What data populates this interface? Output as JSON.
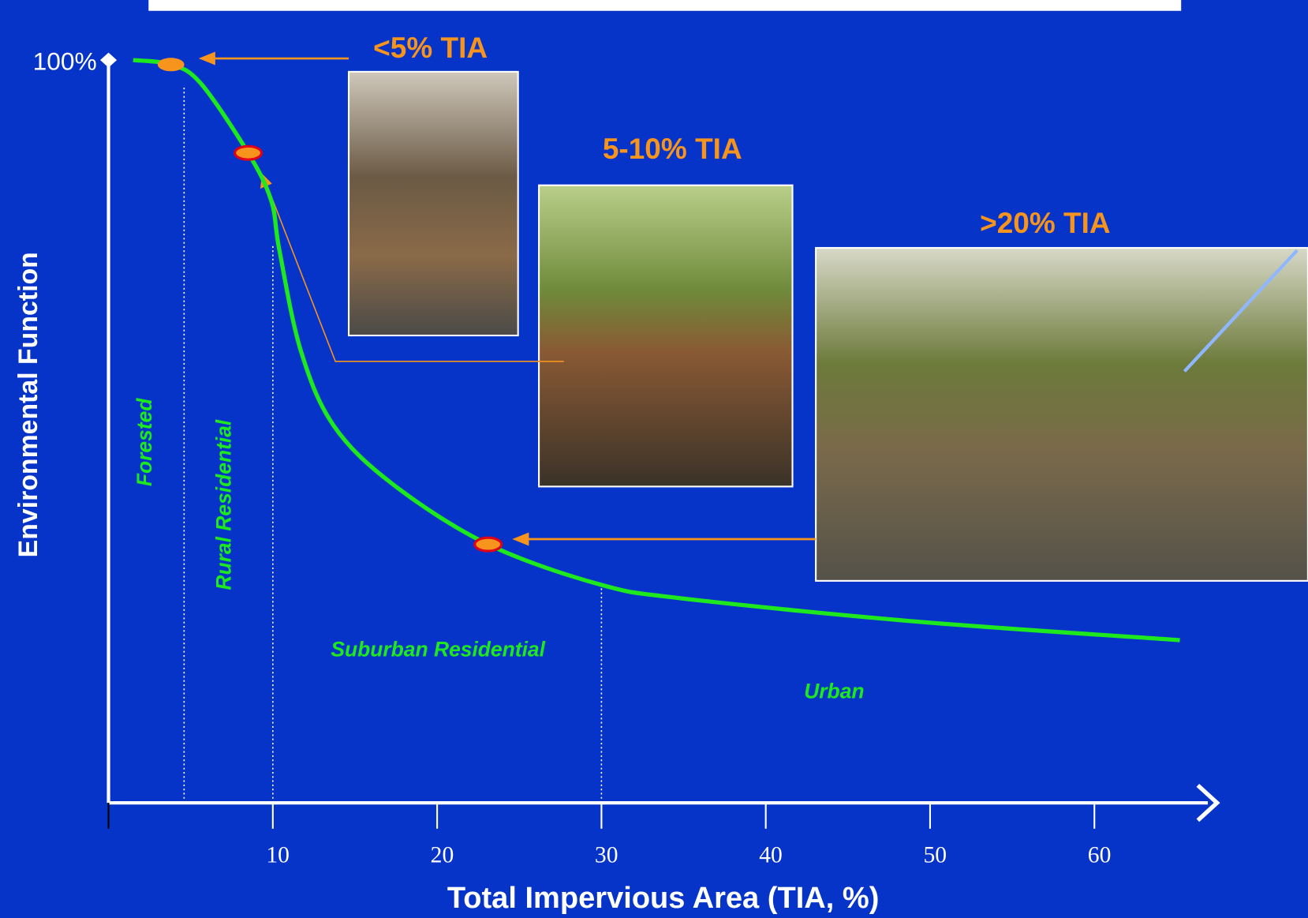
{
  "chart_data": {
    "type": "line",
    "x_label": "Total Impervious Area (TIA, %)",
    "y_label": "Environmental Function",
    "xlim": [
      0,
      67.5
    ],
    "ylim": [
      0,
      100
    ],
    "xticks": [
      10,
      20,
      30,
      40,
      50,
      60
    ],
    "yticks": [
      {
        "value": 100,
        "label": "100%"
      }
    ],
    "x": [
      1.5,
      3.8,
      5.6,
      8.5,
      9.9,
      10.4,
      11.7,
      13.7,
      17.3,
      23.1,
      29.9,
      35.0,
      49.2,
      65.2
    ],
    "series": [
      {
        "color": "#1ee81e",
        "values": [
          100,
          99.4,
          96.9,
          87.5,
          81.1,
          74.4,
          60.9,
          50.8,
          42.9,
          34.8,
          29.4,
          27.5,
          24.4,
          21.9
        ]
      }
    ],
    "highlight_points": {
      "x": [
        3.8,
        8.5,
        23.1
      ],
      "values": [
        99.4,
        87.5,
        34.8
      ],
      "colors": [
        "#f7941d",
        "#f7941d",
        "#f7941d"
      ]
    },
    "zone_boundaries": [
      4.6,
      10,
      30
    ],
    "zones": [
      "Forested",
      "Rural Residential",
      "Suburban Residential",
      "Urban"
    ],
    "annotations": [
      "<5% TIA",
      "5-10% TIA",
      ">20% TIA"
    ]
  }
}
